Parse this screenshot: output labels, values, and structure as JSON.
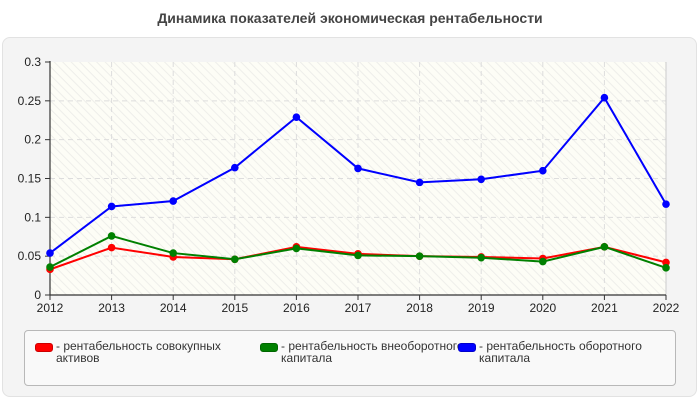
{
  "title": "Динамика показателей экономическая рентабельности",
  "chart_data": {
    "type": "line",
    "title": "Динамика показателей экономическая рентабельности",
    "xlabel": "",
    "ylabel": "",
    "x": [
      "2012",
      "2013",
      "2014",
      "2015",
      "2016",
      "2017",
      "2018",
      "2019",
      "2020",
      "2021",
      "2022"
    ],
    "ylim": [
      0,
      0.3
    ],
    "yticks": [
      "0",
      "0.05",
      "0.1",
      "0.15",
      "0.2",
      "0.25",
      "0.3"
    ],
    "grid": true,
    "legend_position": "bottom",
    "series": [
      {
        "name": "рентабельность совокупных активов",
        "color": "#ff0000",
        "values": [
          0.033,
          0.061,
          0.049,
          0.046,
          0.062,
          0.053,
          0.05,
          0.049,
          0.047,
          0.062,
          0.042
        ]
      },
      {
        "name": "рентабельность внеоборотного капитала",
        "color": "#008000",
        "values": [
          0.036,
          0.076,
          0.054,
          0.046,
          0.06,
          0.051,
          0.05,
          0.048,
          0.043,
          0.062,
          0.035
        ]
      },
      {
        "name": "рентабельность оборотного капитала",
        "color": "#0000ff",
        "values": [
          0.054,
          0.114,
          0.121,
          0.164,
          0.229,
          0.163,
          0.145,
          0.149,
          0.16,
          0.254,
          0.117
        ]
      }
    ]
  },
  "legend": [
    {
      "label": "- рентабельность совокупных активов",
      "color": "#ff0000"
    },
    {
      "label": "- рентабельность внеоборотного капитала",
      "color": "#008000"
    },
    {
      "label": "- рентабельность оборотного капитала",
      "color": "#0000ff"
    }
  ]
}
